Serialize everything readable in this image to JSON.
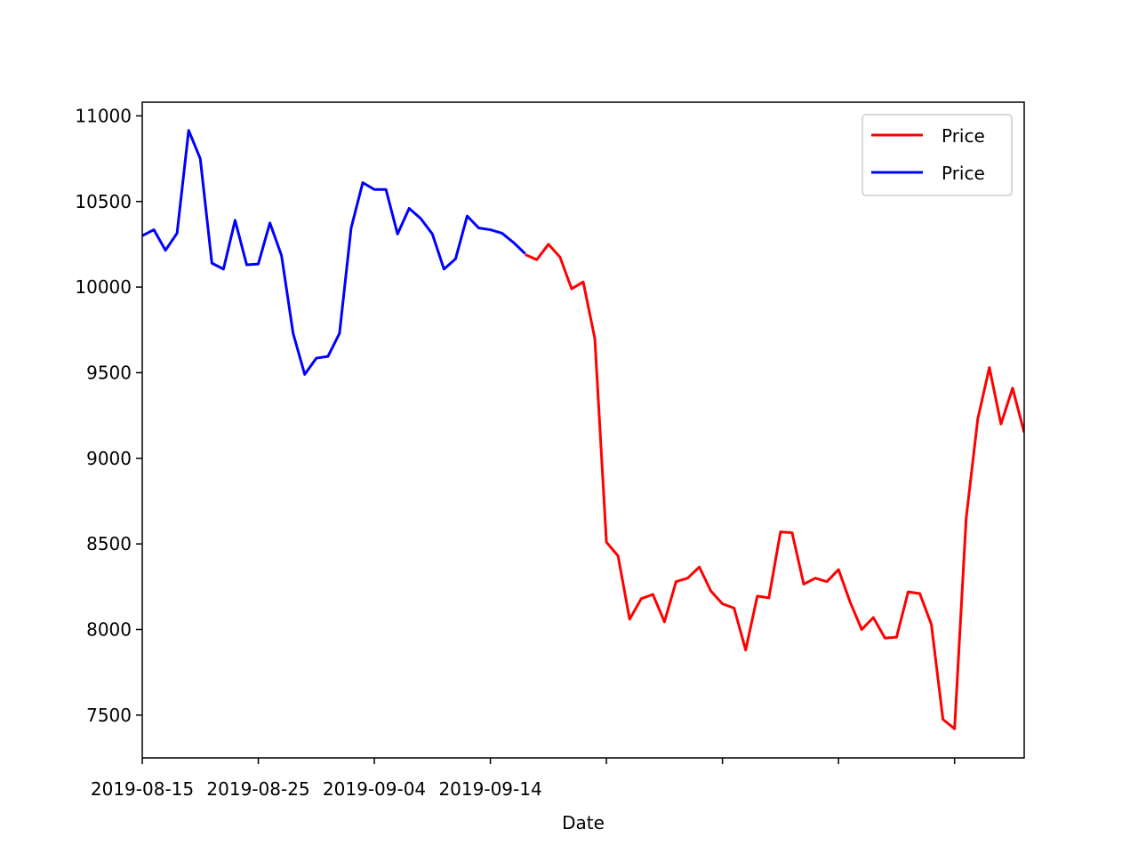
{
  "chart_data": {
    "type": "line",
    "title": "",
    "xlabel": "Date",
    "ylabel": "",
    "x_start": "2019-08-15",
    "xlim": [
      "2019-08-15",
      "2019-11-00"
    ],
    "ylim": [
      7250,
      11080
    ],
    "grid": false,
    "legend_position": "top-right",
    "y_ticks": [
      7500,
      8000,
      8500,
      9000,
      9500,
      10000,
      10500,
      11000
    ],
    "x_ticks": [
      {
        "label": "2019-08-15"
      },
      {
        "label": "2019-08-25"
      },
      {
        "label": "2019-09-04"
      },
      {
        "label": "2019-09-14"
      },
      {
        "label": ""
      },
      {
        "label": ""
      },
      {
        "label": ""
      },
      {
        "label": ""
      }
    ],
    "series": [
      {
        "name": "Price",
        "color": "#ff0000",
        "values": [
          10190,
          10160,
          10250,
          10175,
          9990,
          10030,
          9700,
          8510,
          8430,
          8060,
          8180,
          8205,
          8045,
          8280,
          8300,
          8365,
          8225,
          8150,
          8125,
          7880,
          8195,
          8185,
          8570,
          8565,
          8265,
          8300,
          8280,
          8350,
          8160,
          8000,
          8070,
          7950,
          7955,
          8220,
          8210,
          8030,
          7475,
          7420,
          8650,
          9230,
          9530,
          9200,
          9410,
          9150
        ]
      },
      {
        "name": "Price",
        "color": "#0000ff",
        "values": [
          10300,
          10335,
          10215,
          10315,
          10915,
          10750,
          10140,
          10105,
          10390,
          10130,
          10135,
          10375,
          10185,
          9730,
          9490,
          9585,
          9595,
          9730,
          10345,
          10610,
          10570,
          10570,
          10310,
          10460,
          10400,
          10310,
          10105,
          10165,
          10415,
          10345,
          10335,
          10315,
          10260,
          10195
        ]
      }
    ]
  }
}
